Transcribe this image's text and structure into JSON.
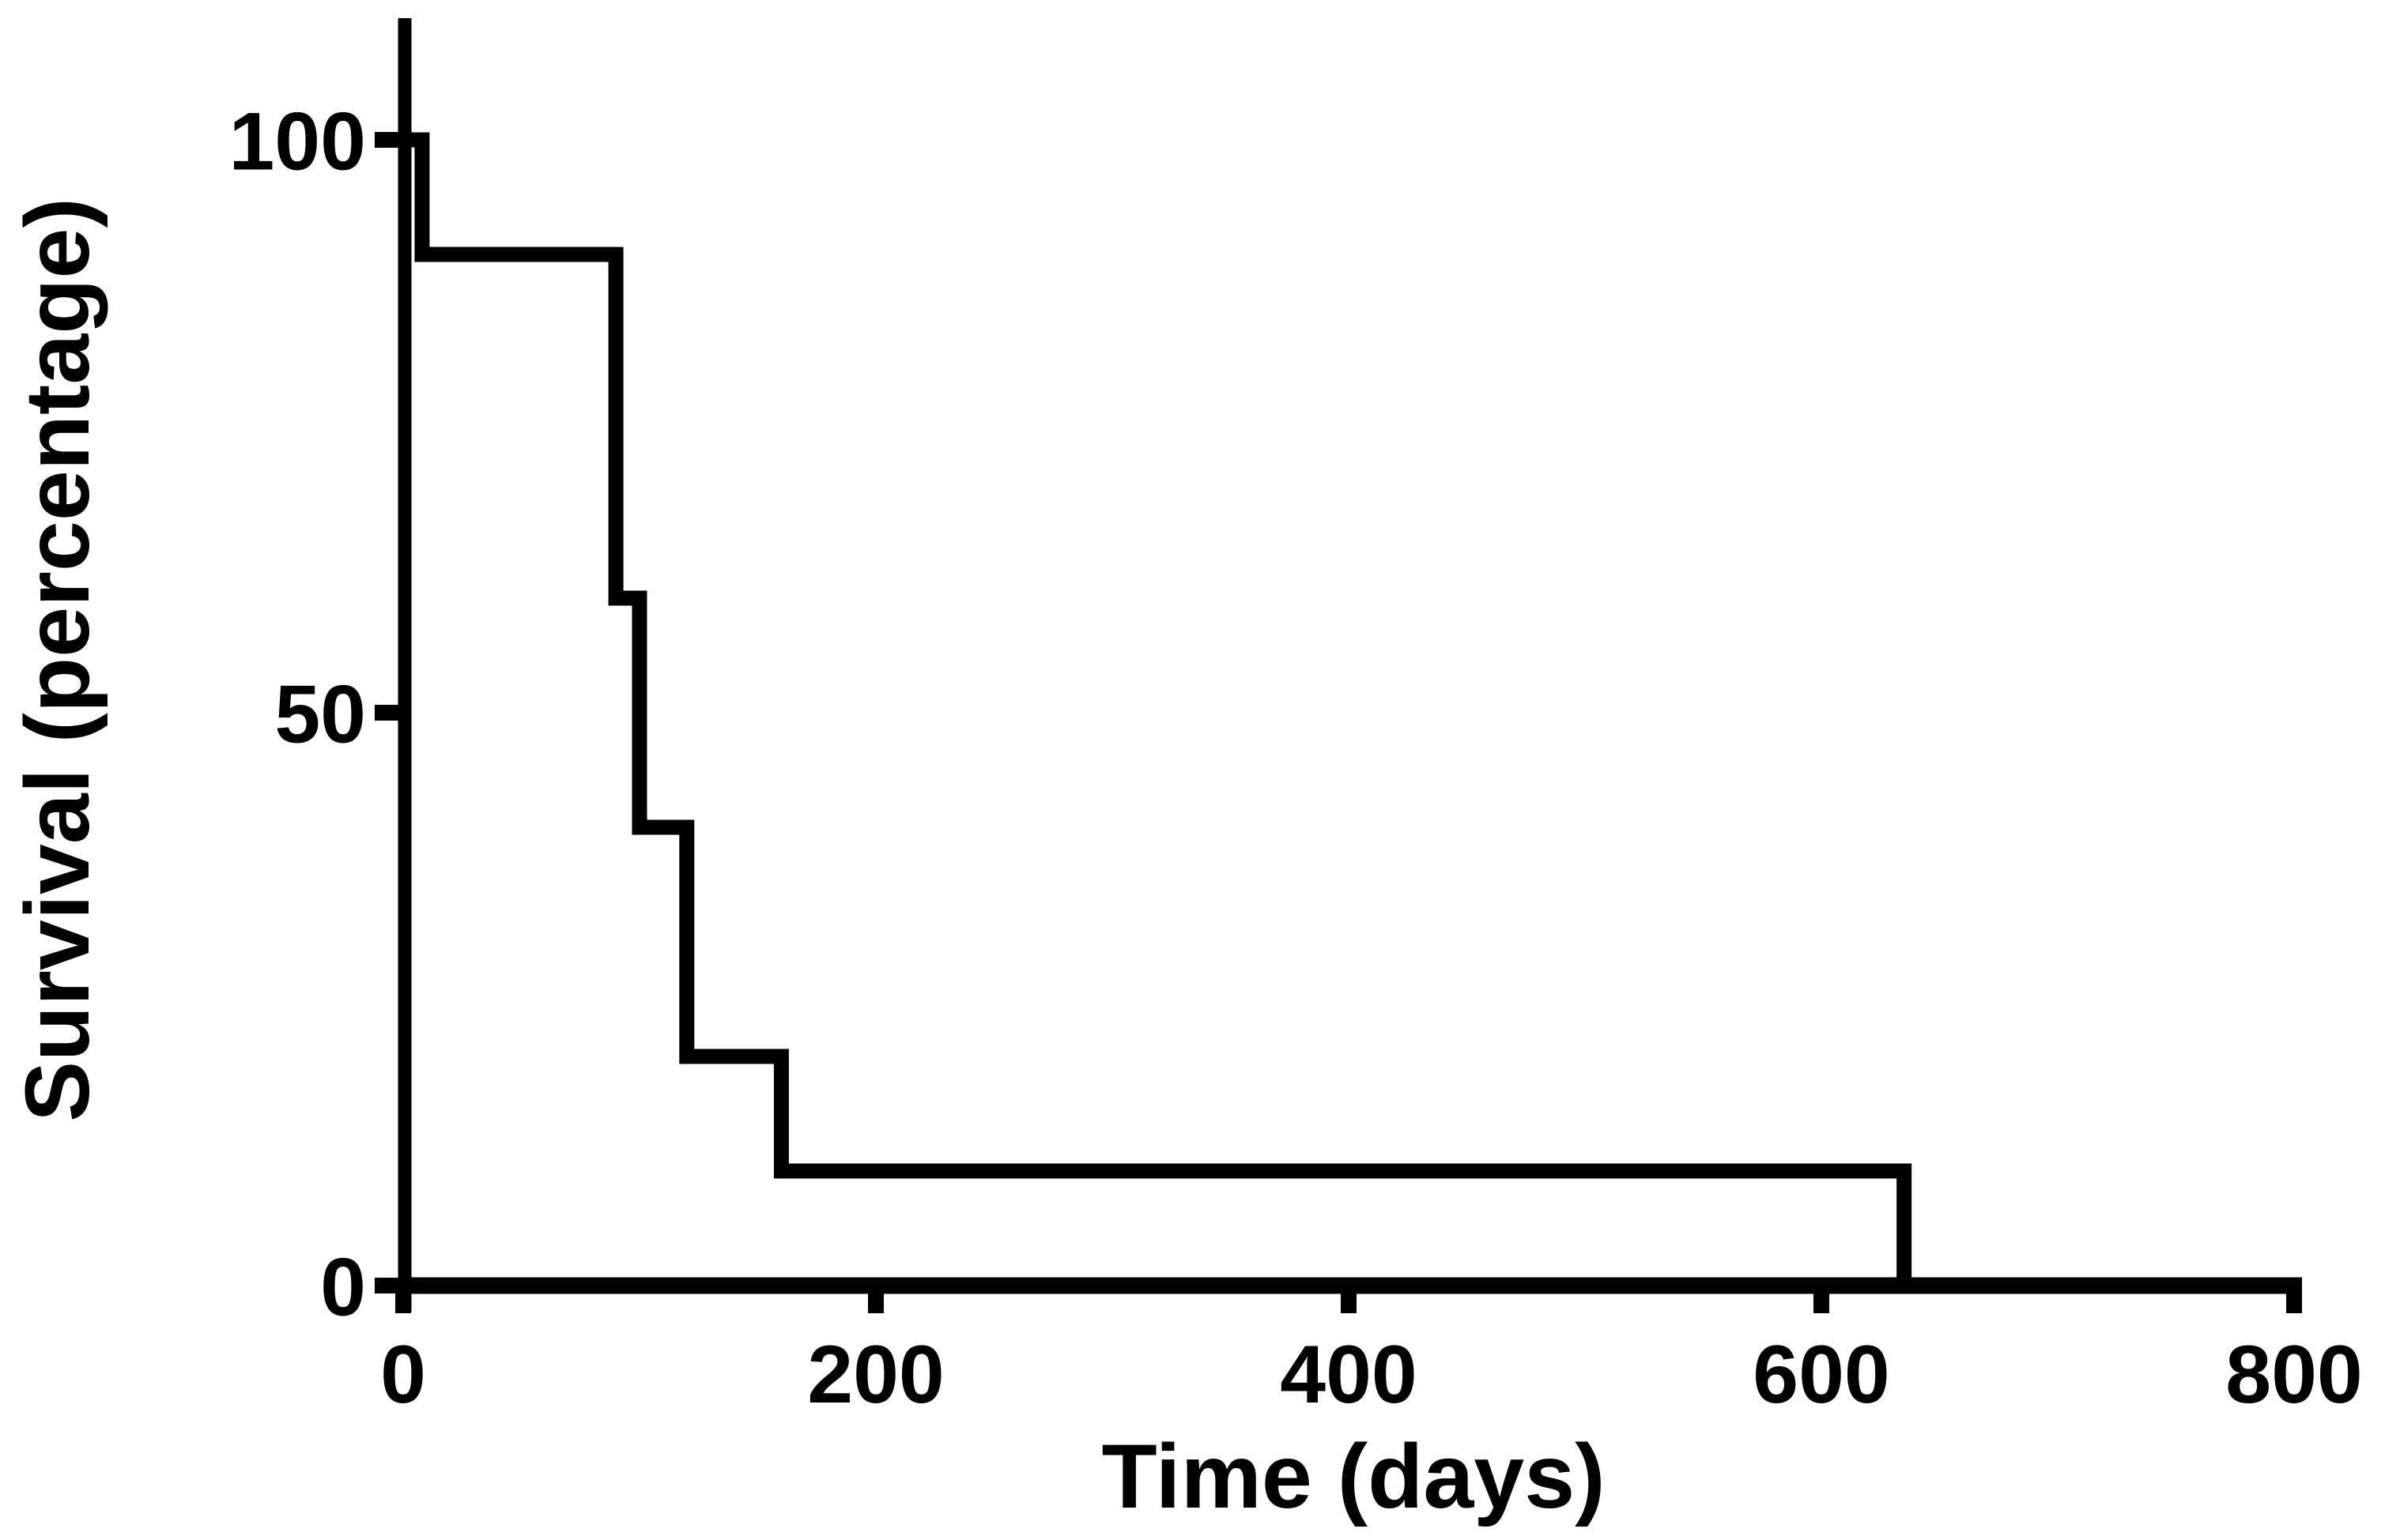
{
  "figure": {
    "kind": "kaplan-meier-survival-plot",
    "background_color": "#ffffff",
    "ink_color": "#000000"
  },
  "chart_data": {
    "type": "line",
    "style": "step-post-kaplan-meier",
    "title": "",
    "xlabel": "Time (days)",
    "ylabel": "Survival (percentage)",
    "xlim": [
      0,
      800
    ],
    "ylim": [
      0,
      100
    ],
    "x_ticks": [
      0,
      200,
      400,
      600,
      800
    ],
    "y_ticks": [
      100,
      50,
      0
    ],
    "grid": false,
    "legend": "none",
    "series": [
      {
        "name": "Survival",
        "color": "#000000",
        "points": [
          {
            "time_days": 0,
            "survival_pct": 100
          },
          {
            "time_days": 8,
            "survival_pct": 90
          },
          {
            "time_days": 90,
            "survival_pct": 60
          },
          {
            "time_days": 100,
            "survival_pct": 40
          },
          {
            "time_days": 120,
            "survival_pct": 20
          },
          {
            "time_days": 160,
            "survival_pct": 10
          },
          {
            "time_days": 635,
            "survival_pct": 0
          }
        ]
      }
    ]
  }
}
